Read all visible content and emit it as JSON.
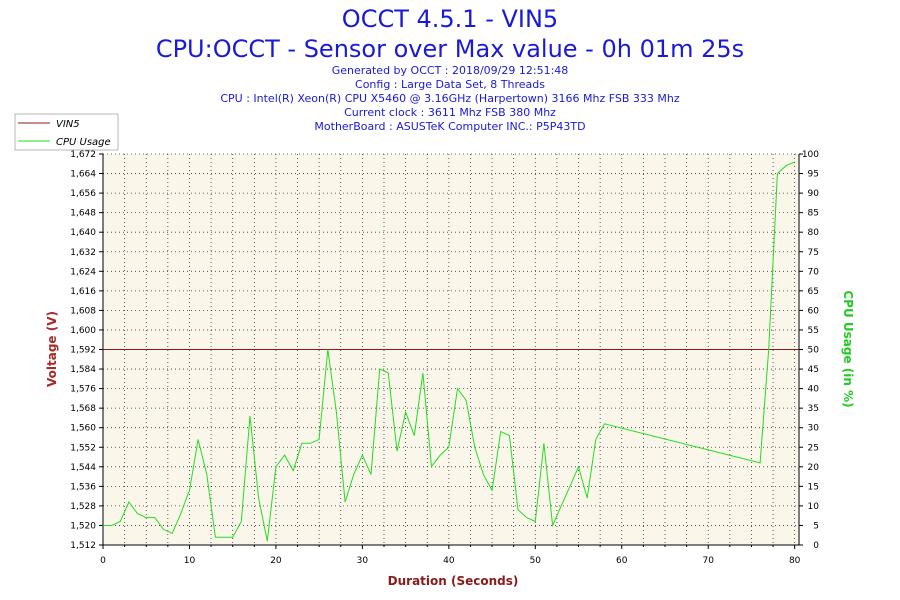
{
  "header": {
    "title": "OCCT 4.5.1 - VIN5",
    "subtitle": "CPU:OCCT - Sensor over Max value - 0h 01m 25s",
    "info_lines": [
      "Generated by OCCT : 2018/09/29 12:51:48",
      "Config : Large Data Set, 8 Threads",
      "CPU : Intel(R) Xeon(R) CPU X5460 @ 3.16GHz (Harpertown) 3166 Mhz FSB 333 Mhz",
      "Current clock : 3611 Mhz FSB 380 Mhz",
      "MotherBoard : ASUSTeK Computer INC.: P5P43TD"
    ]
  },
  "colors": {
    "vin5": "#8b1a1a",
    "cpu_usage": "#22dd22",
    "plot_bg": "#fbf6ea",
    "title": "#1a1ad6"
  },
  "chart_data": {
    "type": "line",
    "xlabel": "Duration (Seconds)",
    "ylabel_left": "Voltage (V)",
    "ylabel_right": "CPU Usage (in %)",
    "xlim": [
      0,
      80.5
    ],
    "ylim_left": [
      1.512,
      1.672
    ],
    "ylim_right": [
      0,
      100
    ],
    "x_ticks": [
      "0",
      "10",
      "20",
      "30",
      "40",
      "50",
      "60",
      "70",
      "80"
    ],
    "y_left_ticks": [
      "1,512",
      "1,520",
      "1,528",
      "1,536",
      "1,544",
      "1,552",
      "1,560",
      "1,568",
      "1,576",
      "1,584",
      "1,592",
      "1,600",
      "1,608",
      "1,616",
      "1,624",
      "1,632",
      "1,640",
      "1,648",
      "1,656",
      "1,664",
      "1,672"
    ],
    "y_right_ticks": [
      "0",
      "5",
      "10",
      "15",
      "20",
      "25",
      "30",
      "35",
      "40",
      "45",
      "50",
      "55",
      "60",
      "65",
      "70",
      "75",
      "80",
      "85",
      "90",
      "95",
      "100"
    ],
    "grid": true,
    "legend": "top-left",
    "series": [
      {
        "name": "VIN5",
        "axis": "left",
        "x": [
          0,
          80.5
        ],
        "y": [
          1.592,
          1.592
        ]
      },
      {
        "name": "CPU Usage",
        "axis": "right",
        "x": [
          0,
          1,
          2,
          3,
          4,
          5,
          6,
          7,
          8,
          9,
          10,
          11,
          12,
          13,
          14,
          15,
          16,
          17,
          18,
          19,
          20,
          21,
          22,
          23,
          24,
          25,
          26,
          27,
          28,
          29,
          30,
          31,
          32,
          33,
          34,
          35,
          36,
          37,
          38,
          39,
          40,
          41,
          42,
          43,
          44,
          45,
          46,
          47,
          48,
          49,
          50,
          51,
          52,
          53,
          54,
          55,
          56,
          57,
          58,
          76,
          77,
          78,
          79,
          80
        ],
        "y": [
          5,
          5,
          6,
          11,
          8,
          7,
          7,
          4,
          3,
          8,
          14,
          27,
          18,
          2,
          2,
          2,
          6,
          33,
          12,
          1,
          20,
          23,
          19,
          26,
          26,
          27,
          50,
          34,
          11,
          18,
          23,
          18,
          45,
          44,
          24,
          34,
          28,
          44,
          20,
          23,
          25,
          40,
          37,
          25,
          18,
          14,
          29,
          28,
          9,
          7,
          6,
          26,
          5,
          10,
          15,
          20,
          12,
          27,
          31,
          21,
          50,
          95,
          97,
          98
        ]
      }
    ]
  }
}
